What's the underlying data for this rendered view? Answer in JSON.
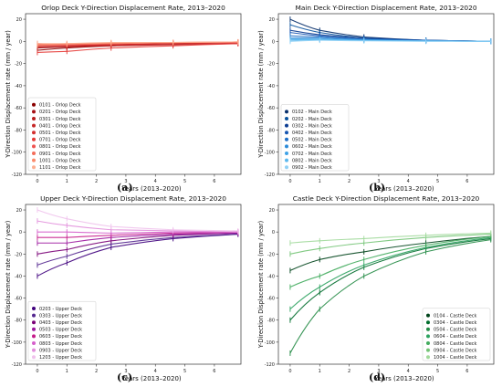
{
  "captions": [
    "(a)",
    "(b)",
    "(c)",
    "(d)"
  ],
  "chart_data": [
    {
      "type": "line",
      "title": "Orlop Deck Y-Direction Displacement Rate, 2013–2020",
      "xlabel": "Years (2013–2020)",
      "ylabel": "Y-Direction Displacement rate (mm / year)",
      "xlim": [
        -0.4,
        6.9
      ],
      "ylim": [
        -120,
        25
      ],
      "xticks": [
        0,
        1,
        2,
        3,
        4,
        5,
        6
      ],
      "yticks": [
        -120,
        -100,
        -80,
        -60,
        -40,
        -20,
        0,
        20
      ],
      "legend": "lower-left",
      "series": [
        {
          "name": "0101 - Orlop Deck",
          "color": "#8b0000",
          "x": [
            0.0,
            1.0,
            2.5,
            4.6,
            6.8
          ],
          "y": [
            -8,
            -6,
            -4,
            -2,
            -1
          ]
        },
        {
          "name": "0201 - Orlop Deck",
          "color": "#a50f15",
          "x": [
            0.0,
            1.0,
            2.5,
            4.6,
            6.8
          ],
          "y": [
            -6,
            -5,
            -3,
            -2,
            -1
          ]
        },
        {
          "name": "0301 - Orlop Deck",
          "color": "#b71c1c",
          "x": [
            0.0,
            1.0,
            2.5,
            4.6,
            6.8
          ],
          "y": [
            -5,
            -5,
            -4,
            -3,
            -2
          ]
        },
        {
          "name": "0401 - Orlop Deck",
          "color": "#c62828",
          "x": [
            0.0,
            1.0,
            2.5,
            4.6,
            6.8
          ],
          "y": [
            -4,
            -4,
            -3,
            -2,
            -1
          ]
        },
        {
          "name": "0501 - Orlop Deck",
          "color": "#d32f2f",
          "x": [
            0.0,
            1.0,
            2.5,
            4.6,
            6.8
          ],
          "y": [
            -3,
            -4,
            -3,
            -2,
            -1
          ]
        },
        {
          "name": "0701 - Orlop Deck",
          "color": "#e53935",
          "x": [
            0.0,
            1.0,
            2.5,
            4.6,
            6.8
          ],
          "y": [
            -10,
            -9,
            -6,
            -4,
            -2
          ]
        },
        {
          "name": "0801 - Orlop Deck",
          "color": "#ef5350",
          "x": [
            0.0,
            1.0,
            2.5,
            4.6,
            6.8
          ],
          "y": [
            -2,
            -3,
            -2,
            -1,
            -1
          ]
        },
        {
          "name": "0901 - Orlop Deck",
          "color": "#f46d5a",
          "x": [
            0.0,
            1.0,
            2.5,
            4.6,
            6.8
          ],
          "y": [
            -4,
            -3,
            -2,
            -1,
            -0.5
          ]
        },
        {
          "name": "1001 - Orlop Deck",
          "color": "#fb8a6a",
          "x": [
            0.0,
            1.0,
            2.5,
            4.6,
            6.8
          ],
          "y": [
            -3,
            -2,
            -1.5,
            -1,
            -0.5
          ]
        },
        {
          "name": "1101 - Orlop Deck",
          "color": "#fcae91",
          "x": [
            0.0,
            1.0,
            2.5,
            4.6,
            6.8
          ],
          "y": [
            -2,
            -2,
            -1,
            -1,
            -0.5
          ]
        }
      ]
    },
    {
      "type": "line",
      "title": "Main Deck Y-Direction Displacement Rate, 2013–2020",
      "xlabel": "Years (2013–2020)",
      "ylabel": "Y-Direction Displacement rate (mm / year)",
      "xlim": [
        -0.4,
        6.9
      ],
      "ylim": [
        -120,
        25
      ],
      "xticks": [
        0,
        1,
        2,
        3,
        4,
        5,
        6
      ],
      "yticks": [
        -120,
        -100,
        -80,
        -60,
        -40,
        -20,
        0,
        20
      ],
      "legend": "lower-left",
      "series": [
        {
          "name": "0102 - Main Deck",
          "color": "#08306b",
          "x": [
            0.0,
            1.0,
            2.5,
            4.6,
            6.8
          ],
          "y": [
            20,
            10,
            4,
            1,
            0
          ]
        },
        {
          "name": "0202 - Main Deck",
          "color": "#08519c",
          "x": [
            0.0,
            1.0,
            2.5,
            4.6,
            6.8
          ],
          "y": [
            15,
            8,
            3,
            1,
            0
          ]
        },
        {
          "name": "0302 - Main Deck",
          "color": "#0b3c91",
          "x": [
            0.0,
            1.0,
            2.5,
            4.6,
            6.8
          ],
          "y": [
            10,
            6,
            3,
            1,
            0
          ]
        },
        {
          "name": "0402 - Main Deck",
          "color": "#1554b0",
          "x": [
            0.0,
            1.0,
            2.5,
            4.6,
            6.8
          ],
          "y": [
            8,
            5,
            2,
            1,
            0
          ]
        },
        {
          "name": "0502 - Main Deck",
          "color": "#1f6fc7",
          "x": [
            0.0,
            1.0,
            2.5,
            4.6,
            6.8
          ],
          "y": [
            5,
            4,
            2,
            0.5,
            0
          ]
        },
        {
          "name": "0602 - Main Deck",
          "color": "#2b8ad8",
          "x": [
            0.0,
            1.0,
            2.5,
            4.6,
            6.8
          ],
          "y": [
            3,
            3,
            1.5,
            0.5,
            0
          ]
        },
        {
          "name": "0702 - Main Deck",
          "color": "#3fa2e6",
          "x": [
            0.0,
            1.0,
            2.5,
            4.6,
            6.8
          ],
          "y": [
            2,
            2,
            1,
            0.5,
            0
          ]
        },
        {
          "name": "0802 - Main Deck",
          "color": "#5bb8ee",
          "x": [
            0.0,
            1.0,
            2.5,
            4.6,
            6.8
          ],
          "y": [
            1,
            1.5,
            1,
            0.5,
            0
          ]
        },
        {
          "name": "0902 - Main Deck",
          "color": "#8fd0f5",
          "x": [
            0.0,
            1.0,
            2.5,
            4.6,
            6.8
          ],
          "y": [
            0,
            1,
            0.5,
            0,
            0
          ]
        }
      ]
    },
    {
      "type": "line",
      "title": "Upper Deck Y-Direction Displacement Rate, 2013–2020",
      "xlabel": "Years (2013–2020)",
      "ylabel": "Y-Direction Displacement rate (mm / year)",
      "xlim": [
        -0.4,
        6.9
      ],
      "ylim": [
        -120,
        25
      ],
      "xticks": [
        0,
        1,
        2,
        3,
        4,
        5,
        6
      ],
      "yticks": [
        -120,
        -100,
        -80,
        -60,
        -40,
        -20,
        0,
        20
      ],
      "legend": "lower-left",
      "series": [
        {
          "name": "0203 - Upper Deck",
          "color": "#3f007d",
          "x": [
            0.0,
            1.0,
            2.5,
            4.6,
            6.8
          ],
          "y": [
            -40,
            -28,
            -14,
            -6,
            -2
          ]
        },
        {
          "name": "0303 - Upper Deck",
          "color": "#54278f",
          "x": [
            0.0,
            1.0,
            2.5,
            4.6,
            6.8
          ],
          "y": [
            -30,
            -22,
            -11,
            -5,
            -2
          ]
        },
        {
          "name": "0403 - Upper Deck",
          "color": "#7a0177",
          "x": [
            0.0,
            1.0,
            2.5,
            4.6,
            6.8
          ],
          "y": [
            -20,
            -16,
            -8,
            -3,
            -1
          ]
        },
        {
          "name": "0503 - Upper Deck",
          "color": "#9c179e",
          "x": [
            0.0,
            1.0,
            2.5,
            4.6,
            6.8
          ],
          "y": [
            -10,
            -10,
            -5,
            -2,
            -1
          ]
        },
        {
          "name": "0603 - Upper Deck",
          "color": "#c51b8a",
          "x": [
            0.0,
            1.0,
            2.5,
            4.6,
            6.8
          ],
          "y": [
            -5,
            -5,
            -3,
            -1,
            0
          ]
        },
        {
          "name": "0803 - Upper Deck",
          "color": "#d55fcb",
          "x": [
            0.0,
            1.0,
            2.5,
            4.6,
            6.8
          ],
          "y": [
            0,
            0,
            -1,
            0,
            0
          ]
        },
        {
          "name": "0903 - Upper Deck",
          "color": "#e28fdc",
          "x": [
            0.0,
            1.0,
            2.5,
            4.6,
            6.8
          ],
          "y": [
            10,
            6,
            2,
            1,
            0
          ]
        },
        {
          "name": "1203 - Upper Deck",
          "color": "#f0c2ec",
          "x": [
            0.0,
            1.0,
            2.5,
            4.6,
            6.8
          ],
          "y": [
            20,
            12,
            5,
            2,
            1
          ]
        }
      ]
    },
    {
      "type": "line",
      "title": "Castle Deck Y-Direction Displacement Rate, 2013–2020",
      "xlabel": "Years (2013–2020)",
      "ylabel": "Y-Direction Displacement rate (mm / year)",
      "xlim": [
        -0.4,
        6.9
      ],
      "ylim": [
        -120,
        25
      ],
      "xticks": [
        0,
        1,
        2,
        3,
        4,
        5,
        6
      ],
      "yticks": [
        -120,
        -100,
        -80,
        -60,
        -40,
        -20,
        0,
        20
      ],
      "legend": "lower-right",
      "series": [
        {
          "name": "0104 - Castle Deck",
          "color": "#00441b",
          "x": [
            0.0,
            1.0,
            2.5,
            4.6,
            6.8
          ],
          "y": [
            -35,
            -25,
            -18,
            -10,
            -4
          ]
        },
        {
          "name": "0304 - Castle Deck",
          "color": "#006d2c",
          "x": [
            0.0,
            1.0,
            2.5,
            4.6,
            6.8
          ],
          "y": [
            -80,
            -55,
            -32,
            -15,
            -6
          ]
        },
        {
          "name": "0504 - Castle Deck",
          "color": "#238b45",
          "x": [
            0.0,
            1.0,
            2.5,
            4.6,
            6.8
          ],
          "y": [
            -110,
            -70,
            -40,
            -18,
            -7
          ]
        },
        {
          "name": "0604 - Castle Deck",
          "color": "#2ca25f",
          "x": [
            0.0,
            1.0,
            2.5,
            4.6,
            6.8
          ],
          "y": [
            -70,
            -50,
            -30,
            -14,
            -5
          ]
        },
        {
          "name": "0804 - Castle Deck",
          "color": "#41ab5d",
          "x": [
            0.0,
            1.0,
            2.5,
            4.6,
            6.8
          ],
          "y": [
            -50,
            -40,
            -25,
            -12,
            -4
          ]
        },
        {
          "name": "0904 - Castle Deck",
          "color": "#74c476",
          "x": [
            0.0,
            1.0,
            2.5,
            4.6,
            6.8
          ],
          "y": [
            -20,
            -15,
            -10,
            -5,
            -2
          ]
        },
        {
          "name": "1004 - Castle Deck",
          "color": "#a1d99b",
          "x": [
            0.0,
            1.0,
            2.5,
            4.6,
            6.8
          ],
          "y": [
            -10,
            -8,
            -6,
            -3,
            -1
          ]
        }
      ]
    }
  ]
}
